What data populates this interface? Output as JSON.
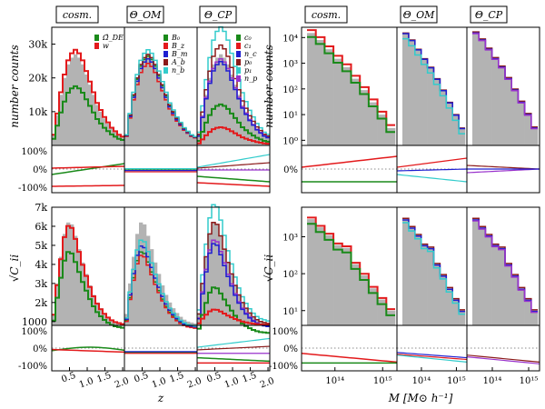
{
  "chart_data": {
    "type": "histogram-grid",
    "title": "",
    "column_headers": [
      "cosm.",
      "Θ_OM",
      "Θ_CP"
    ],
    "legend_cosm": [
      {
        "label": "Ω̂_DE",
        "color": "#1a8a1a"
      },
      {
        "label": "w",
        "color": "#e31a1c"
      }
    ],
    "legend_om": [
      {
        "label": "B₀",
        "color": "#1a8a1a"
      },
      {
        "label": "B_z",
        "color": "#e31a1c"
      },
      {
        "label": "B_m",
        "color": "#1f1fd1"
      },
      {
        "label": "A_b",
        "color": "#8b1a1a"
      },
      {
        "label": "n_b",
        "color": "#33cccc"
      }
    ],
    "legend_cp": [
      {
        "label": "c₀",
        "color": "#1a8a1a"
      },
      {
        "label": "c₁",
        "color": "#e31a1c"
      },
      {
        "label": "n_c",
        "color": "#1f1fd1"
      },
      {
        "label": "p₀",
        "color": "#8b1a1a"
      },
      {
        "label": "p₁",
        "color": "#33cccc"
      },
      {
        "label": "n_p",
        "color": "#9932cc"
      }
    ],
    "ylabel_top": "number counts",
    "ylabel_bottom": "√C_ii",
    "xlabel_left": "z",
    "xlabel_right": "M [M⊙ h⁻¹]",
    "left_top_yticks": [
      "10k",
      "20k",
      "30k"
    ],
    "left_bottom_yticks": [
      "1000",
      "2k",
      "3k",
      "4k",
      "5k",
      "6k",
      "7k"
    ],
    "ratio_yticks": [
      "100%",
      "0%",
      "-100%"
    ],
    "left_xticks": [
      "0.5",
      "1.0",
      "1.5",
      "2.0"
    ],
    "right_top_yticks": [
      "10⁰",
      "10¹",
      "10²",
      "10³",
      "10⁴"
    ],
    "right_bottom_yticks": [
      "10¹",
      "10²",
      "10³"
    ],
    "right_xticks": [
      "10¹⁴",
      "10¹⁵"
    ],
    "z_bins": [
      0.1,
      0.2,
      0.3,
      0.4,
      0.5,
      0.6,
      0.7,
      0.8,
      0.9,
      1.0,
      1.1,
      1.2,
      1.3,
      1.4,
      1.5,
      1.6,
      1.7,
      1.8,
      1.9,
      2.0
    ],
    "counts_fiducial_k": [
      3,
      9,
      15,
      20,
      24,
      26,
      27,
      26,
      24,
      21,
      18,
      15,
      12,
      10,
      8,
      6.5,
      5,
      4,
      3,
      2.5
    ],
    "sqrtC_fiducial_k": [
      1.4,
      3.0,
      4.4,
      5.6,
      6.2,
      6.1,
      5.5,
      4.8,
      4.1,
      3.5,
      2.9,
      2.4,
      2.0,
      1.7,
      1.45,
      1.25,
      1.1,
      1.0,
      0.95,
      0.9
    ],
    "m_bins_log10": [
      13.7,
      13.85,
      14.0,
      14.15,
      14.3,
      14.45,
      14.6,
      14.75,
      14.9,
      15.05,
      15.2
    ],
    "counts_mass_fiducial": [
      15000,
      8000,
      3500,
      1500,
      700,
      250,
      90,
      30,
      10,
      3
    ],
    "sqrtC_mass_fiducial": [
      3000,
      1800,
      1100,
      600,
      500,
      180,
      90,
      40,
      20,
      10
    ]
  }
}
